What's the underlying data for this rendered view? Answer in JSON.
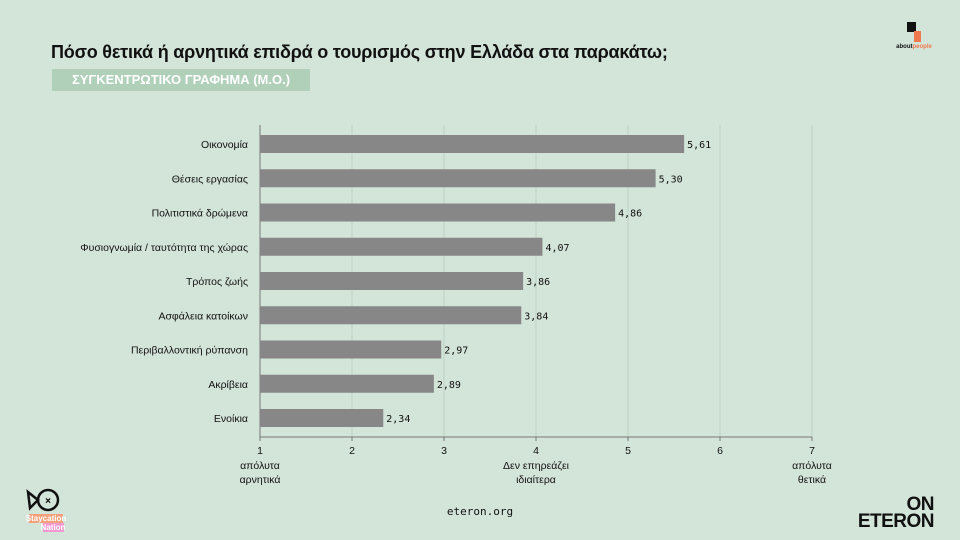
{
  "header": {
    "title": "Πόσο θετικά ή αρνητικά επιδρά ο τουρισμός στην Ελλάδα στα παρακάτω;",
    "subtitle": "ΣΥΓΚΕΝΤΡΩΤΙΚΟ ΓΡΑΦΗΜΑ (Μ.Ο.)"
  },
  "logos": {
    "aboutpeople": "aboutpeople",
    "staycation": "Staycation Nation",
    "eteron": "ON ETERON"
  },
  "footer": {
    "url": "eteron.org"
  },
  "colors": {
    "background": "#d3e4d9",
    "bar": "#878787",
    "subtitle_bg": "#b0d0b9"
  },
  "chart_data": {
    "type": "bar",
    "orientation": "horizontal",
    "categories": [
      "Οικονομία",
      "Θέσεις εργασίας",
      "Πολιτιστικά δρώμενα",
      "Φυσιογνωμία / ταυτότητα της χώρας",
      "Τρόπος ζωής",
      "Ασφάλεια κατοίκων",
      "Περιβαλλοντική ρύπανση",
      "Ακρίβεια",
      "Ενοίκια"
    ],
    "values": [
      5.61,
      5.3,
      4.86,
      4.07,
      3.86,
      3.84,
      2.97,
      2.89,
      2.34
    ],
    "data_labels": [
      "5,61",
      "5,30",
      "4,86",
      "4,07",
      "3,86",
      "3,84",
      "2,97",
      "2,89",
      "2,34"
    ],
    "xlim": [
      1,
      7
    ],
    "xticks": [
      "1",
      "2",
      "3",
      "4",
      "5",
      "6",
      "7"
    ],
    "xtick_annotations": [
      {
        "at": 1,
        "text": [
          "απόλυτα",
          "αρνητικά"
        ]
      },
      {
        "at": 4,
        "text": [
          "Δεν επηρεάζει",
          "ιδιαίτερα"
        ]
      },
      {
        "at": 7,
        "text": [
          "απόλυτα",
          "θετικά"
        ]
      }
    ],
    "grid": "vertical"
  }
}
